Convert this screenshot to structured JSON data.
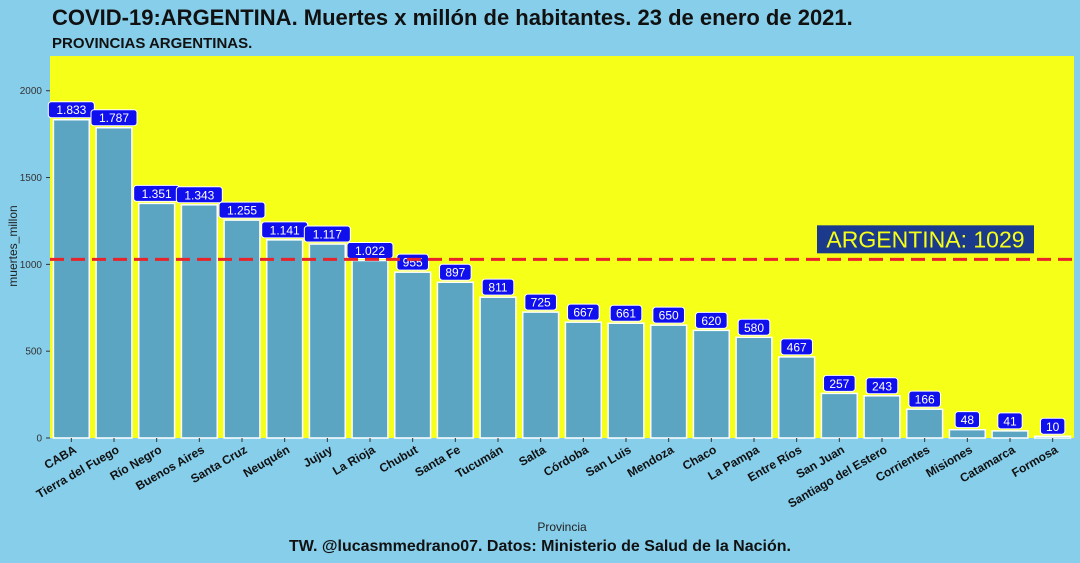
{
  "header": {
    "title": "COVID-19:ARGENTINA. Muertes x millón de habitantes. 23 de enero de 2021.",
    "subtitle": "PROVINCIAS ARGENTINAS."
  },
  "footer": {
    "credit": "TW. @lucasmmedrano07. Datos: Ministerio de Salud de la Nación."
  },
  "colors": {
    "background": "#87ceeb",
    "panel": "#f5ff17",
    "bar": "#5ba5c3",
    "label_box": "#1010ee",
    "reference_line": "#e8232a",
    "reference_box": "#1c3a8c",
    "reference_text": "#f5ff17"
  },
  "chart_data": {
    "type": "bar",
    "xlabel": "Provincia",
    "ylabel": "muertes_millon",
    "ylim": [
      0,
      2200
    ],
    "yticks": [
      0,
      500,
      1000,
      1500,
      2000
    ],
    "grid": false,
    "categories": [
      "CABA",
      "Tierra del Fuego",
      "Río Negro",
      "Buenos Aires",
      "Santa Cruz",
      "Neuquén",
      "Jujuy",
      "La Rioja",
      "Chubut",
      "Santa Fe",
      "Tucumán",
      "Salta",
      "Córdoba",
      "San Luis",
      "Mendoza",
      "Chaco",
      "La Pampa",
      "Entre Ríos",
      "San Juan",
      "Santiago del Estero",
      "Corrientes",
      "Misiones",
      "Catamarca",
      "Formosa"
    ],
    "values": [
      1833,
      1787,
      1351,
      1343,
      1255,
      1141,
      1117,
      1022,
      955,
      897,
      811,
      725,
      667,
      661,
      650,
      620,
      580,
      467,
      257,
      243,
      166,
      48,
      41,
      10
    ],
    "data_labels": [
      "1.833",
      "1.787",
      "1.351",
      "1.343",
      "1.255",
      "1.141",
      "1.117",
      "1.022",
      "955",
      "897",
      "811",
      "725",
      "667",
      "661",
      "650",
      "620",
      "580",
      "467",
      "257",
      "243",
      "166",
      "48",
      "41",
      "10"
    ],
    "reference": {
      "value": 1029,
      "label": "ARGENTINA: 1029"
    }
  }
}
